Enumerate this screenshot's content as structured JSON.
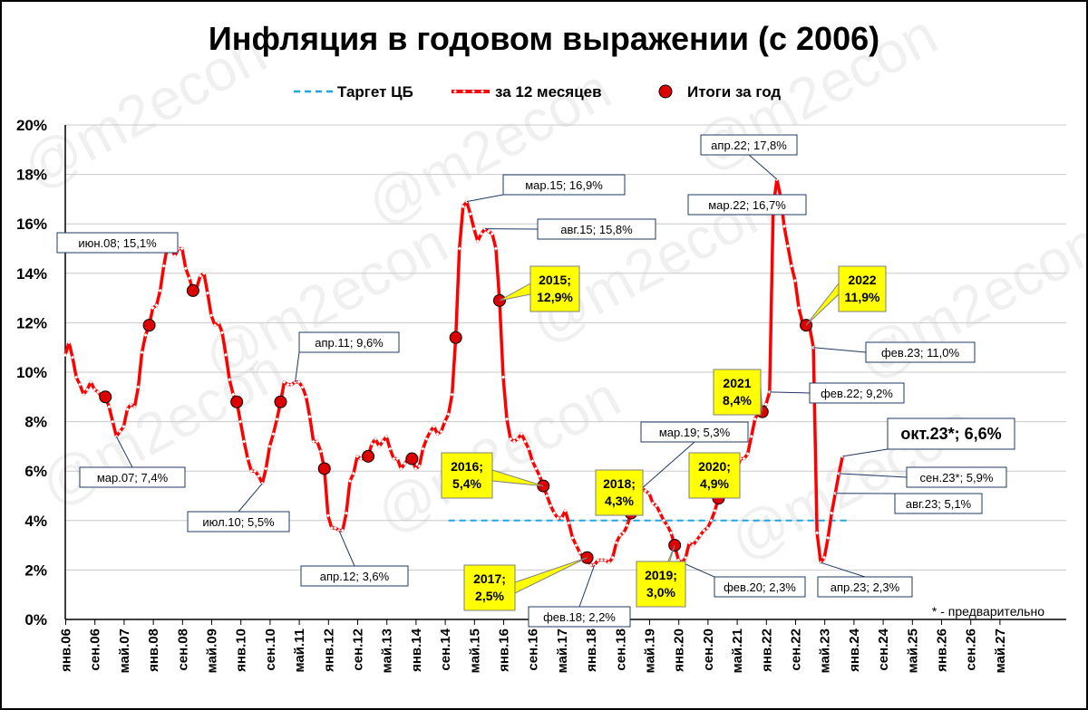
{
  "chart_data": {
    "type": "line",
    "title": "Инфляция в годовом выражении (с 2006)",
    "watermark": "@m2econ",
    "footnote": "* - предварительно",
    "ylim": [
      0,
      20
    ],
    "y_ticks": [
      "0%",
      "2%",
      "4%",
      "6%",
      "8%",
      "10%",
      "12%",
      "14%",
      "16%",
      "18%",
      "20%"
    ],
    "x_ticks": [
      "янв.06",
      "сен.06",
      "май.07",
      "янв.08",
      "сен.08",
      "май.09",
      "янв.10",
      "сен.10",
      "май.11",
      "янв.12",
      "сен.12",
      "май.13",
      "янв.14",
      "сен.14",
      "май.15",
      "янв.16",
      "сен.16",
      "май.17",
      "янв.18",
      "сен.18",
      "май.19",
      "янв.20",
      "сен.20",
      "май.21",
      "янв.22",
      "сен.22",
      "май.23",
      "янв.24",
      "сен.24",
      "май.25",
      "янв.26",
      "сен.26",
      "май.27"
    ],
    "legend": [
      "Таргет ЦБ",
      "за 12 месяцев",
      "Итоги за год"
    ],
    "colors": {
      "series": "#ff0000",
      "target": "#1ea7e0",
      "marker": "#dd0000",
      "highlight": "#ffff00",
      "box_border": "#1f3864"
    },
    "target": {
      "value": 4,
      "from": "2014-10",
      "to": "2023-12"
    },
    "series": [
      {
        "name": "за 12 месяцев",
        "points": [
          [
            "2006-01",
            10.7
          ],
          [
            "2006-02",
            11.2
          ],
          [
            "2006-03",
            10.6
          ],
          [
            "2006-04",
            9.8
          ],
          [
            "2006-05",
            9.5
          ],
          [
            "2006-06",
            9.1
          ],
          [
            "2006-07",
            9.3
          ],
          [
            "2006-08",
            9.6
          ],
          [
            "2006-09",
            9.3
          ],
          [
            "2006-10",
            9.2
          ],
          [
            "2006-11",
            9.0
          ],
          [
            "2006-12",
            9.0
          ],
          [
            "2007-01",
            8.6
          ],
          [
            "2007-02",
            8.0
          ],
          [
            "2007-03",
            7.4
          ],
          [
            "2007-04",
            7.6
          ],
          [
            "2007-05",
            7.8
          ],
          [
            "2007-06",
            8.5
          ],
          [
            "2007-07",
            8.7
          ],
          [
            "2007-08",
            8.6
          ],
          [
            "2007-09",
            9.4
          ],
          [
            "2007-10",
            10.8
          ],
          [
            "2007-11",
            11.5
          ],
          [
            "2007-12",
            11.9
          ],
          [
            "2008-01",
            12.6
          ],
          [
            "2008-02",
            12.7
          ],
          [
            "2008-03",
            13.3
          ],
          [
            "2008-04",
            14.3
          ],
          [
            "2008-05",
            15.1
          ],
          [
            "2008-06",
            15.1
          ],
          [
            "2008-07",
            14.7
          ],
          [
            "2008-08",
            15.0
          ],
          [
            "2008-09",
            15.0
          ],
          [
            "2008-10",
            14.2
          ],
          [
            "2008-11",
            13.8
          ],
          [
            "2008-12",
            13.3
          ],
          [
            "2009-01",
            13.4
          ],
          [
            "2009-02",
            13.9
          ],
          [
            "2009-03",
            14.0
          ],
          [
            "2009-04",
            13.2
          ],
          [
            "2009-05",
            12.3
          ],
          [
            "2009-06",
            11.9
          ],
          [
            "2009-07",
            12.0
          ],
          [
            "2009-08",
            11.6
          ],
          [
            "2009-09",
            10.7
          ],
          [
            "2009-10",
            9.7
          ],
          [
            "2009-11",
            9.1
          ],
          [
            "2009-12",
            8.8
          ],
          [
            "2010-01",
            8.0
          ],
          [
            "2010-02",
            7.2
          ],
          [
            "2010-03",
            6.5
          ],
          [
            "2010-04",
            6.0
          ],
          [
            "2010-05",
            6.0
          ],
          [
            "2010-06",
            5.8
          ],
          [
            "2010-07",
            5.5
          ],
          [
            "2010-08",
            6.1
          ],
          [
            "2010-09",
            7.0
          ],
          [
            "2010-10",
            7.5
          ],
          [
            "2010-11",
            8.1
          ],
          [
            "2010-12",
            8.8
          ],
          [
            "2011-01",
            9.6
          ],
          [
            "2011-02",
            9.5
          ],
          [
            "2011-03",
            9.5
          ],
          [
            "2011-04",
            9.6
          ],
          [
            "2011-05",
            9.6
          ],
          [
            "2011-06",
            9.4
          ],
          [
            "2011-07",
            9.0
          ],
          [
            "2011-08",
            8.2
          ],
          [
            "2011-09",
            7.2
          ],
          [
            "2011-10",
            7.2
          ],
          [
            "2011-11",
            6.8
          ],
          [
            "2011-12",
            6.1
          ],
          [
            "2012-01",
            4.2
          ],
          [
            "2012-02",
            3.7
          ],
          [
            "2012-03",
            3.7
          ],
          [
            "2012-04",
            3.6
          ],
          [
            "2012-05",
            3.6
          ],
          [
            "2012-06",
            4.3
          ],
          [
            "2012-07",
            5.6
          ],
          [
            "2012-08",
            5.9
          ],
          [
            "2012-09",
            6.6
          ],
          [
            "2012-10",
            6.5
          ],
          [
            "2012-11",
            6.5
          ],
          [
            "2012-12",
            6.6
          ],
          [
            "2013-01",
            7.1
          ],
          [
            "2013-02",
            7.3
          ],
          [
            "2013-03",
            7.0
          ],
          [
            "2013-04",
            7.2
          ],
          [
            "2013-05",
            7.4
          ],
          [
            "2013-06",
            6.9
          ],
          [
            "2013-07",
            6.5
          ],
          [
            "2013-08",
            6.5
          ],
          [
            "2013-09",
            6.1
          ],
          [
            "2013-10",
            6.3
          ],
          [
            "2013-11",
            6.5
          ],
          [
            "2013-12",
            6.5
          ],
          [
            "2014-01",
            6.1
          ],
          [
            "2014-02",
            6.2
          ],
          [
            "2014-03",
            6.9
          ],
          [
            "2014-04",
            7.3
          ],
          [
            "2014-05",
            7.6
          ],
          [
            "2014-06",
            7.8
          ],
          [
            "2014-07",
            7.5
          ],
          [
            "2014-08",
            7.6
          ],
          [
            "2014-09",
            8.0
          ],
          [
            "2014-10",
            8.3
          ],
          [
            "2014-11",
            9.1
          ],
          [
            "2014-12",
            11.4
          ],
          [
            "2015-01",
            15.0
          ],
          [
            "2015-02",
            16.7
          ],
          [
            "2015-03",
            16.9
          ],
          [
            "2015-04",
            16.4
          ],
          [
            "2015-05",
            15.8
          ],
          [
            "2015-06",
            15.3
          ],
          [
            "2015-07",
            15.6
          ],
          [
            "2015-08",
            15.8
          ],
          [
            "2015-09",
            15.7
          ],
          [
            "2015-10",
            15.6
          ],
          [
            "2015-11",
            15.0
          ],
          [
            "2015-12",
            12.9
          ],
          [
            "2016-01",
            9.8
          ],
          [
            "2016-02",
            8.1
          ],
          [
            "2016-03",
            7.3
          ],
          [
            "2016-04",
            7.2
          ],
          [
            "2016-05",
            7.3
          ],
          [
            "2016-06",
            7.5
          ],
          [
            "2016-07",
            7.2
          ],
          [
            "2016-08",
            6.9
          ],
          [
            "2016-09",
            6.4
          ],
          [
            "2016-10",
            6.1
          ],
          [
            "2016-11",
            5.8
          ],
          [
            "2016-12",
            5.4
          ],
          [
            "2017-01",
            5.0
          ],
          [
            "2017-02",
            4.6
          ],
          [
            "2017-03",
            4.3
          ],
          [
            "2017-04",
            4.1
          ],
          [
            "2017-05",
            4.1
          ],
          [
            "2017-06",
            4.4
          ],
          [
            "2017-07",
            3.9
          ],
          [
            "2017-08",
            3.3
          ],
          [
            "2017-09",
            3.0
          ],
          [
            "2017-10",
            2.7
          ],
          [
            "2017-11",
            2.5
          ],
          [
            "2017-12",
            2.5
          ],
          [
            "2018-01",
            2.2
          ],
          [
            "2018-02",
            2.2
          ],
          [
            "2018-03",
            2.4
          ],
          [
            "2018-04",
            2.4
          ],
          [
            "2018-05",
            2.4
          ],
          [
            "2018-06",
            2.3
          ],
          [
            "2018-07",
            2.5
          ],
          [
            "2018-08",
            3.1
          ],
          [
            "2018-09",
            3.4
          ],
          [
            "2018-10",
            3.5
          ],
          [
            "2018-11",
            3.8
          ],
          [
            "2018-12",
            4.3
          ],
          [
            "2019-01",
            5.0
          ],
          [
            "2019-02",
            5.2
          ],
          [
            "2019-03",
            5.3
          ],
          [
            "2019-04",
            5.2
          ],
          [
            "2019-05",
            5.1
          ],
          [
            "2019-06",
            4.7
          ],
          [
            "2019-07",
            4.6
          ],
          [
            "2019-08",
            4.3
          ],
          [
            "2019-09",
            4.0
          ],
          [
            "2019-10",
            3.8
          ],
          [
            "2019-11",
            3.5
          ],
          [
            "2019-12",
            3.0
          ],
          [
            "2020-01",
            2.4
          ],
          [
            "2020-02",
            2.3
          ],
          [
            "2020-03",
            2.5
          ],
          [
            "2020-04",
            3.1
          ],
          [
            "2020-05",
            3.0
          ],
          [
            "2020-06",
            3.2
          ],
          [
            "2020-07",
            3.4
          ],
          [
            "2020-08",
            3.6
          ],
          [
            "2020-09",
            3.7
          ],
          [
            "2020-10",
            4.0
          ],
          [
            "2020-11",
            4.4
          ],
          [
            "2020-12",
            4.9
          ],
          [
            "2021-01",
            5.2
          ],
          [
            "2021-02",
            5.7
          ],
          [
            "2021-03",
            5.8
          ],
          [
            "2021-04",
            5.5
          ],
          [
            "2021-05",
            6.0
          ],
          [
            "2021-06",
            6.5
          ],
          [
            "2021-07",
            6.5
          ],
          [
            "2021-08",
            6.7
          ],
          [
            "2021-09",
            7.4
          ],
          [
            "2021-10",
            8.1
          ],
          [
            "2021-11",
            8.4
          ],
          [
            "2021-12",
            8.4
          ],
          [
            "2022-01",
            8.7
          ],
          [
            "2022-02",
            9.2
          ],
          [
            "2022-03",
            16.7
          ],
          [
            "2022-04",
            17.8
          ],
          [
            "2022-05",
            17.1
          ],
          [
            "2022-06",
            15.9
          ],
          [
            "2022-07",
            15.1
          ],
          [
            "2022-08",
            14.3
          ],
          [
            "2022-09",
            13.7
          ],
          [
            "2022-10",
            12.6
          ],
          [
            "2022-11",
            12.0
          ],
          [
            "2022-12",
            11.9
          ],
          [
            "2023-01",
            11.8
          ],
          [
            "2023-02",
            11.0
          ],
          [
            "2023-03",
            3.5
          ],
          [
            "2023-04",
            2.3
          ],
          [
            "2023-05",
            2.5
          ],
          [
            "2023-06",
            3.3
          ],
          [
            "2023-07",
            4.3
          ],
          [
            "2023-08",
            5.1
          ],
          [
            "2023-09",
            5.9
          ],
          [
            "2023-10",
            6.6
          ]
        ]
      },
      {
        "name": "Итоги за год",
        "points": [
          [
            "2006-12",
            9.0
          ],
          [
            "2007-12",
            11.9
          ],
          [
            "2008-12",
            13.3
          ],
          [
            "2009-12",
            8.8
          ],
          [
            "2010-12",
            8.8
          ],
          [
            "2011-12",
            6.1
          ],
          [
            "2012-12",
            6.6
          ],
          [
            "2013-12",
            6.5
          ],
          [
            "2014-12",
            11.4
          ],
          [
            "2015-12",
            12.9
          ],
          [
            "2016-12",
            5.4
          ],
          [
            "2017-12",
            2.5
          ],
          [
            "2018-12",
            4.3
          ],
          [
            "2019-12",
            3.0
          ],
          [
            "2020-12",
            4.9
          ],
          [
            "2021-12",
            8.4
          ],
          [
            "2022-12",
            11.9
          ]
        ]
      }
    ],
    "annotations": [
      {
        "text": "июн.08; 15,1%",
        "x": "2008-05",
        "y": 15.1,
        "style": "box"
      },
      {
        "text": "мар.07; 7,4%",
        "x": "2007-03",
        "y": 7.4,
        "style": "box"
      },
      {
        "text": "июл.10; 5,5%",
        "x": "2010-07",
        "y": 5.5,
        "style": "box"
      },
      {
        "text": "апр.11; 9,6%",
        "x": "2011-04",
        "y": 9.6,
        "style": "box"
      },
      {
        "text": "апр.12; 3,6%",
        "x": "2012-04",
        "y": 3.6,
        "style": "box"
      },
      {
        "text": "мар.15; 16,9%",
        "x": "2015-03",
        "y": 16.9,
        "style": "box"
      },
      {
        "text": "авг.15; 15,8%",
        "x": "2015-08",
        "y": 15.8,
        "style": "box"
      },
      {
        "text": "фев.18; 2,2%",
        "x": "2018-02",
        "y": 2.2,
        "style": "box"
      },
      {
        "text": "мар.19; 5,3%",
        "x": "2019-03",
        "y": 5.3,
        "style": "box"
      },
      {
        "text": "фев.20; 2,3%",
        "x": "2020-02",
        "y": 2.3,
        "style": "box"
      },
      {
        "text": "апр.22; 17,8%",
        "x": "2022-04",
        "y": 17.8,
        "style": "box"
      },
      {
        "text": "мар.22; 16,7%",
        "x": "2022-03",
        "y": 16.7,
        "style": "box"
      },
      {
        "text": "фев.22; 9,2%",
        "x": "2022-02",
        "y": 9.2,
        "style": "box"
      },
      {
        "text": "фев.23; 11,0%",
        "x": "2023-02",
        "y": 11.0,
        "style": "box"
      },
      {
        "text": "апр.23; 2,3%",
        "x": "2023-04",
        "y": 2.3,
        "style": "box"
      },
      {
        "text": "авг.23; 5,1%",
        "x": "2023-08",
        "y": 5.1,
        "style": "box"
      },
      {
        "text": "сен.23*; 5,9%",
        "x": "2023-09",
        "y": 5.9,
        "style": "box"
      },
      {
        "text": "окт.23*; 6,6%",
        "x": "2023-10",
        "y": 6.6,
        "style": "big"
      },
      {
        "text": "2015;\n12,9%",
        "x": "2015-12",
        "y": 12.9,
        "style": "highlight"
      },
      {
        "text": "2016;\n5,4%",
        "x": "2016-12",
        "y": 5.4,
        "style": "highlight"
      },
      {
        "text": "2017;\n2,5%",
        "x": "2017-12",
        "y": 2.5,
        "style": "highlight"
      },
      {
        "text": "2018;\n4,3%",
        "x": "2018-12",
        "y": 4.3,
        "style": "highlight"
      },
      {
        "text": "2019;\n3,0%",
        "x": "2019-12",
        "y": 3.0,
        "style": "highlight"
      },
      {
        "text": "2020;\n4,9%",
        "x": "2020-12",
        "y": 4.9,
        "style": "highlight"
      },
      {
        "text": "2021\n8,4%",
        "x": "2021-12",
        "y": 8.4,
        "style": "highlight"
      },
      {
        "text": "2022\n11,9%",
        "x": "2022-12",
        "y": 11.9,
        "style": "highlight"
      }
    ],
    "grid": true,
    "legend_position": "top"
  }
}
